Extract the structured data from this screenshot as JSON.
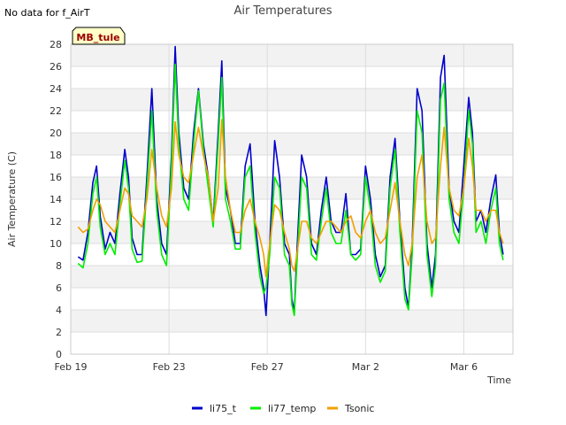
{
  "status_text": "No data for f_AirT",
  "chart_data": {
    "type": "line",
    "title": "Air Temperatures",
    "xlabel": "Time",
    "ylabel": "Air Temperature (C)",
    "annotation": "MB_tule",
    "ylim": [
      0,
      28
    ],
    "yticks": [
      0,
      2,
      4,
      6,
      8,
      10,
      12,
      14,
      16,
      18,
      20,
      22,
      24,
      26,
      28
    ],
    "xlim": [
      0,
      18
    ],
    "xticks": [
      {
        "x": 0,
        "label": "Feb 19"
      },
      {
        "x": 4,
        "label": "Feb 23"
      },
      {
        "x": 8,
        "label": "Feb 27"
      },
      {
        "x": 12,
        "label": "Mar 2"
      },
      {
        "x": 16,
        "label": "Mar 6"
      }
    ],
    "grid": true,
    "legend_position": "bottom",
    "series": [
      {
        "name": "li75_t",
        "color": "#0000cc",
        "points": [
          [
            0.3,
            8.8
          ],
          [
            0.5,
            8.5
          ],
          [
            0.7,
            11
          ],
          [
            0.9,
            15.5
          ],
          [
            1.05,
            17
          ],
          [
            1.2,
            12.5
          ],
          [
            1.4,
            9.5
          ],
          [
            1.6,
            11
          ],
          [
            1.8,
            10
          ],
          [
            2.0,
            14.5
          ],
          [
            2.2,
            18.5
          ],
          [
            2.35,
            16
          ],
          [
            2.5,
            10.5
          ],
          [
            2.7,
            9
          ],
          [
            2.9,
            9
          ],
          [
            3.1,
            16
          ],
          [
            3.3,
            24
          ],
          [
            3.5,
            14
          ],
          [
            3.7,
            10
          ],
          [
            3.9,
            9
          ],
          [
            4.1,
            18
          ],
          [
            4.25,
            27.8
          ],
          [
            4.4,
            20
          ],
          [
            4.6,
            15
          ],
          [
            4.8,
            14
          ],
          [
            5.0,
            20
          ],
          [
            5.2,
            24
          ],
          [
            5.4,
            19
          ],
          [
            5.6,
            16
          ],
          [
            5.8,
            12
          ],
          [
            6.0,
            20
          ],
          [
            6.15,
            26.5
          ],
          [
            6.3,
            15
          ],
          [
            6.5,
            13
          ],
          [
            6.7,
            10
          ],
          [
            6.9,
            10
          ],
          [
            7.1,
            17
          ],
          [
            7.3,
            19
          ],
          [
            7.5,
            12
          ],
          [
            7.7,
            8
          ],
          [
            7.85,
            6
          ],
          [
            7.95,
            3.5
          ],
          [
            8.1,
            10
          ],
          [
            8.3,
            19.3
          ],
          [
            8.5,
            16
          ],
          [
            8.7,
            10
          ],
          [
            8.9,
            9
          ],
          [
            9.0,
            5
          ],
          [
            9.1,
            3.8
          ],
          [
            9.2,
            9
          ],
          [
            9.4,
            18
          ],
          [
            9.6,
            16
          ],
          [
            9.8,
            10
          ],
          [
            10.0,
            9
          ],
          [
            10.2,
            13
          ],
          [
            10.4,
            16
          ],
          [
            10.6,
            12
          ],
          [
            10.8,
            11
          ],
          [
            11.0,
            11
          ],
          [
            11.2,
            14.5
          ],
          [
            11.4,
            9
          ],
          [
            11.6,
            9
          ],
          [
            11.8,
            9.5
          ],
          [
            12.0,
            17
          ],
          [
            12.2,
            14
          ],
          [
            12.4,
            9
          ],
          [
            12.6,
            7
          ],
          [
            12.8,
            8
          ],
          [
            13.0,
            16
          ],
          [
            13.2,
            19.5
          ],
          [
            13.4,
            12
          ],
          [
            13.6,
            6
          ],
          [
            13.75,
            4.2
          ],
          [
            13.9,
            10
          ],
          [
            14.1,
            24
          ],
          [
            14.3,
            22
          ],
          [
            14.5,
            10
          ],
          [
            14.7,
            6
          ],
          [
            14.85,
            9
          ],
          [
            15.05,
            25
          ],
          [
            15.2,
            27
          ],
          [
            15.4,
            15
          ],
          [
            15.6,
            12
          ],
          [
            15.8,
            11
          ],
          [
            16.0,
            17
          ],
          [
            16.2,
            23.2
          ],
          [
            16.35,
            20
          ],
          [
            16.5,
            12
          ],
          [
            16.7,
            13
          ],
          [
            16.9,
            11
          ],
          [
            17.1,
            14
          ],
          [
            17.3,
            16.2
          ],
          [
            17.45,
            11
          ],
          [
            17.6,
            9
          ]
        ]
      },
      {
        "name": "li77_temp",
        "color": "#00ee00",
        "points": [
          [
            0.3,
            8.2
          ],
          [
            0.5,
            7.8
          ],
          [
            0.7,
            10
          ],
          [
            0.9,
            14.5
          ],
          [
            1.05,
            16
          ],
          [
            1.2,
            11.5
          ],
          [
            1.4,
            9
          ],
          [
            1.6,
            10
          ],
          [
            1.8,
            9
          ],
          [
            2.0,
            13.5
          ],
          [
            2.2,
            17.5
          ],
          [
            2.35,
            15
          ],
          [
            2.5,
            9.5
          ],
          [
            2.7,
            8.3
          ],
          [
            2.9,
            8.4
          ],
          [
            3.1,
            15
          ],
          [
            3.3,
            22
          ],
          [
            3.5,
            13
          ],
          [
            3.7,
            9
          ],
          [
            3.9,
            8
          ],
          [
            4.1,
            17
          ],
          [
            4.25,
            26.2
          ],
          [
            4.4,
            19
          ],
          [
            4.6,
            14
          ],
          [
            4.8,
            13
          ],
          [
            5.0,
            19
          ],
          [
            5.2,
            23.8
          ],
          [
            5.4,
            18.5
          ],
          [
            5.6,
            15
          ],
          [
            5.8,
            11.5
          ],
          [
            6.0,
            19
          ],
          [
            6.15,
            25
          ],
          [
            6.3,
            14
          ],
          [
            6.5,
            12
          ],
          [
            6.7,
            9.5
          ],
          [
            6.9,
            9.5
          ],
          [
            7.1,
            16
          ],
          [
            7.3,
            17
          ],
          [
            7.5,
            11
          ],
          [
            7.7,
            7
          ],
          [
            7.85,
            5.5
          ],
          [
            7.95,
            6
          ],
          [
            8.1,
            9
          ],
          [
            8.3,
            16
          ],
          [
            8.5,
            15
          ],
          [
            8.7,
            9
          ],
          [
            8.9,
            8
          ],
          [
            9.0,
            4.5
          ],
          [
            9.1,
            3.5
          ],
          [
            9.2,
            8
          ],
          [
            9.4,
            16
          ],
          [
            9.6,
            15
          ],
          [
            9.8,
            9
          ],
          [
            10.0,
            8.5
          ],
          [
            10.2,
            12
          ],
          [
            10.4,
            15
          ],
          [
            10.6,
            11
          ],
          [
            10.8,
            10
          ],
          [
            11.0,
            10
          ],
          [
            11.2,
            13
          ],
          [
            11.4,
            9
          ],
          [
            11.6,
            8.5
          ],
          [
            11.8,
            9
          ],
          [
            12.0,
            16
          ],
          [
            12.2,
            13
          ],
          [
            12.4,
            8
          ],
          [
            12.6,
            6.5
          ],
          [
            12.8,
            7.5
          ],
          [
            13.0,
            15
          ],
          [
            13.2,
            18.5
          ],
          [
            13.4,
            11
          ],
          [
            13.6,
            5
          ],
          [
            13.75,
            4
          ],
          [
            13.9,
            9
          ],
          [
            14.1,
            22
          ],
          [
            14.3,
            20
          ],
          [
            14.5,
            9
          ],
          [
            14.7,
            5.2
          ],
          [
            14.85,
            8
          ],
          [
            15.05,
            23
          ],
          [
            15.2,
            24.5
          ],
          [
            15.4,
            14
          ],
          [
            15.6,
            11
          ],
          [
            15.8,
            10
          ],
          [
            16.0,
            15
          ],
          [
            16.2,
            22
          ],
          [
            16.35,
            19
          ],
          [
            16.5,
            11
          ],
          [
            16.7,
            12
          ],
          [
            16.9,
            10
          ],
          [
            17.1,
            13
          ],
          [
            17.3,
            15
          ],
          [
            17.45,
            10
          ],
          [
            17.6,
            8.5
          ]
        ]
      },
      {
        "name": "Tsonic",
        "color": "#f0a000",
        "points": [
          [
            0.3,
            11.5
          ],
          [
            0.5,
            11
          ],
          [
            0.7,
            11.3
          ],
          [
            0.9,
            13
          ],
          [
            1.05,
            14
          ],
          [
            1.2,
            13.5
          ],
          [
            1.4,
            12
          ],
          [
            1.6,
            11.5
          ],
          [
            1.8,
            11
          ],
          [
            2.0,
            13
          ],
          [
            2.2,
            15
          ],
          [
            2.35,
            14.5
          ],
          [
            2.5,
            12.5
          ],
          [
            2.7,
            12
          ],
          [
            2.9,
            11.5
          ],
          [
            3.1,
            14
          ],
          [
            3.3,
            18.5
          ],
          [
            3.5,
            15
          ],
          [
            3.7,
            12.5
          ],
          [
            3.9,
            11.5
          ],
          [
            4.1,
            15
          ],
          [
            4.25,
            21
          ],
          [
            4.4,
            18
          ],
          [
            4.6,
            16
          ],
          [
            4.8,
            15.5
          ],
          [
            5.0,
            18
          ],
          [
            5.2,
            20.5
          ],
          [
            5.4,
            18
          ],
          [
            5.6,
            16
          ],
          [
            5.8,
            12
          ],
          [
            6.0,
            15
          ],
          [
            6.15,
            21.2
          ],
          [
            6.3,
            16
          ],
          [
            6.5,
            13
          ],
          [
            6.7,
            11
          ],
          [
            6.9,
            11
          ],
          [
            7.1,
            13
          ],
          [
            7.3,
            14
          ],
          [
            7.5,
            12
          ],
          [
            7.7,
            10.5
          ],
          [
            7.85,
            9
          ],
          [
            7.95,
            7
          ],
          [
            8.1,
            10
          ],
          [
            8.3,
            13.5
          ],
          [
            8.5,
            13
          ],
          [
            8.7,
            11
          ],
          [
            8.9,
            9.5
          ],
          [
            9.0,
            8
          ],
          [
            9.1,
            7.5
          ],
          [
            9.2,
            9
          ],
          [
            9.4,
            12
          ],
          [
            9.6,
            12
          ],
          [
            9.8,
            10.5
          ],
          [
            10.0,
            10
          ],
          [
            10.2,
            11
          ],
          [
            10.4,
            12
          ],
          [
            10.6,
            12
          ],
          [
            10.8,
            11.5
          ],
          [
            11.0,
            11
          ],
          [
            11.2,
            12
          ],
          [
            11.4,
            12.5
          ],
          [
            11.6,
            11
          ],
          [
            11.8,
            10.5
          ],
          [
            12.0,
            12
          ],
          [
            12.2,
            13
          ],
          [
            12.4,
            11
          ],
          [
            12.6,
            10
          ],
          [
            12.8,
            10.5
          ],
          [
            13.0,
            13
          ],
          [
            13.2,
            15.5
          ],
          [
            13.4,
            12
          ],
          [
            13.6,
            9
          ],
          [
            13.75,
            8
          ],
          [
            13.9,
            10
          ],
          [
            14.1,
            16
          ],
          [
            14.3,
            18
          ],
          [
            14.5,
            12
          ],
          [
            14.7,
            10
          ],
          [
            14.85,
            10.5
          ],
          [
            15.05,
            17
          ],
          [
            15.2,
            20.5
          ],
          [
            15.4,
            15
          ],
          [
            15.6,
            13
          ],
          [
            15.8,
            12.5
          ],
          [
            16.0,
            15
          ],
          [
            16.2,
            19.5
          ],
          [
            16.35,
            17
          ],
          [
            16.5,
            13
          ],
          [
            16.7,
            13
          ],
          [
            16.9,
            12
          ],
          [
            17.1,
            13
          ],
          [
            17.3,
            13
          ],
          [
            17.45,
            11
          ],
          [
            17.6,
            10
          ]
        ]
      }
    ]
  }
}
